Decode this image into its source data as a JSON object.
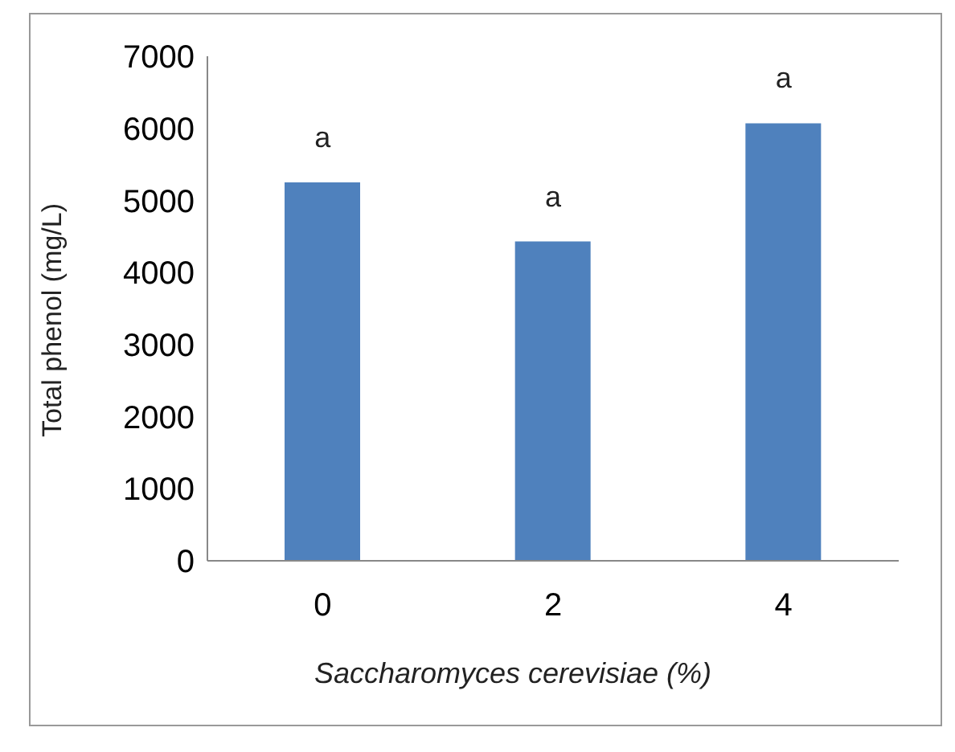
{
  "chart_data": {
    "type": "bar",
    "xlabel": "Saccharomyces cerevisiae (%)",
    "ylabel": "Total phenol (mg/L)",
    "categories": [
      "0",
      "2",
      "4"
    ],
    "values": [
      5250,
      4430,
      6070
    ],
    "color": "#4f81bd",
    "ylim": [
      0,
      7000
    ],
    "yticks": [
      0,
      1000,
      2000,
      3000,
      4000,
      5000,
      6000,
      7000
    ],
    "grid": false,
    "annotations": [
      {
        "text": "a",
        "x": "0",
        "y": 5250
      },
      {
        "text": "a",
        "x": "2",
        "y": 4430
      },
      {
        "text": "a",
        "x": "4",
        "y": 6070
      }
    ]
  }
}
